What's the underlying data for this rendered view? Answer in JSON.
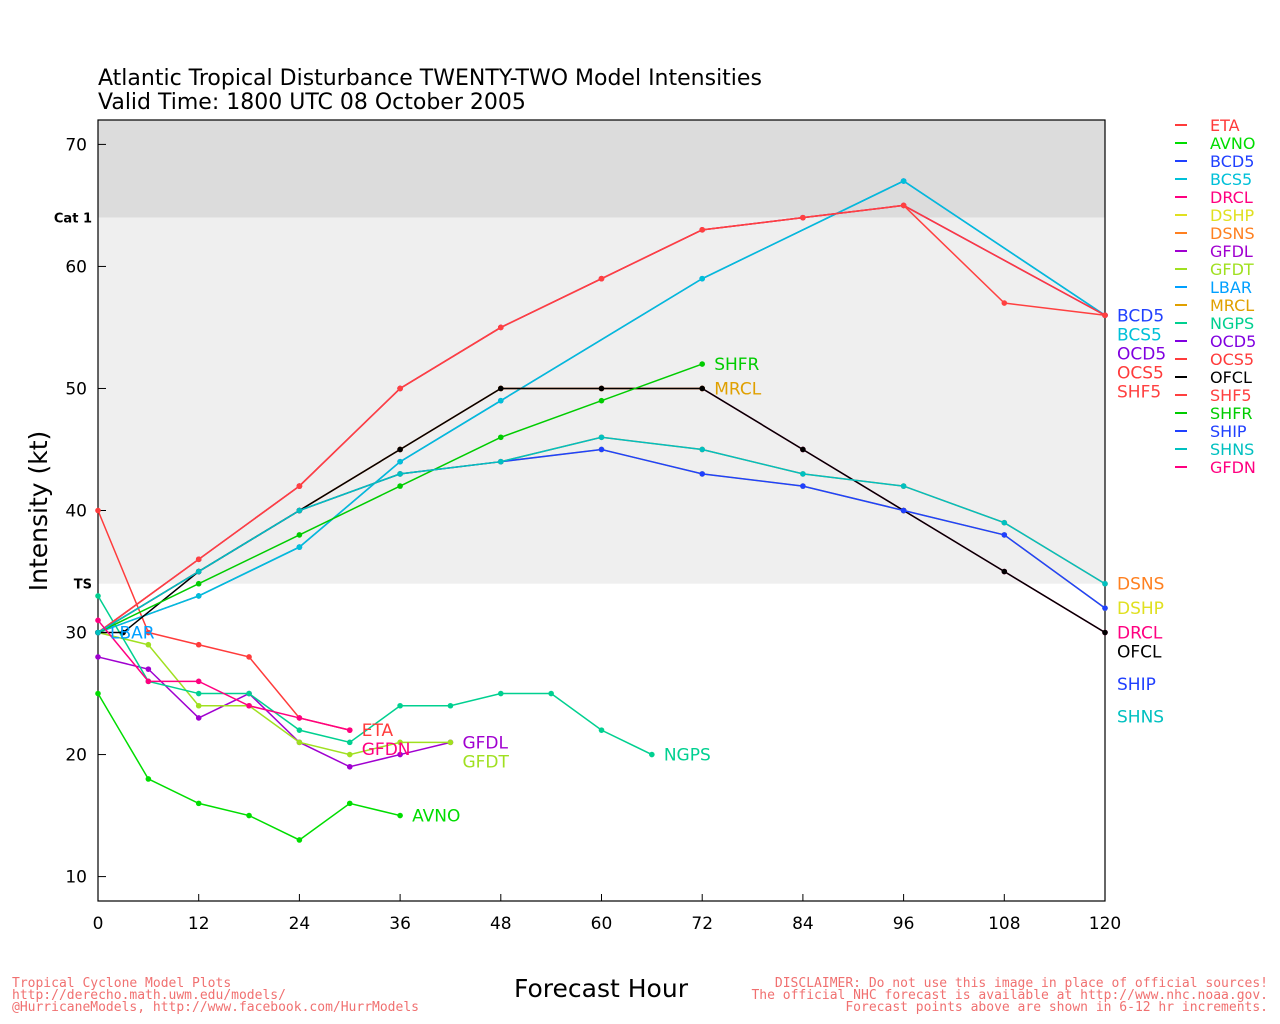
{
  "header": {
    "title": "Atlantic Tropical Disturbance TWENTY-TWO Model Intensities",
    "subtitle": "Valid Time: 1800 UTC 08 October 2005"
  },
  "footer": {
    "left": [
      "Tropical Cyclone Model Plots",
      "http://derecho.math.uwm.edu/models/",
      "@HurricaneModels, http://www.facebook.com/HurrModels"
    ],
    "right": [
      "DISCLAIMER: Do not use this image in place of official sources!",
      "The official NHC forecast is available at http://www.nhc.noaa.gov.",
      "Forecast points above are shown in 6-12 hr increments."
    ]
  },
  "chart_data": {
    "type": "line",
    "title": "Atlantic Tropical Disturbance TWENTY-TWO Model Intensities",
    "xlabel": "Forecast Hour",
    "ylabel": "Intensity (kt)",
    "xlim": [
      0,
      120
    ],
    "ylim": [
      8,
      72
    ],
    "xticks": [
      0,
      12,
      24,
      36,
      48,
      60,
      72,
      84,
      96,
      108,
      120
    ],
    "yticks": [
      10,
      20,
      30,
      40,
      50,
      60,
      70
    ],
    "bands": [
      {
        "label": "Cat 1",
        "from": 64,
        "to": 72,
        "color": "#dcdcdc"
      },
      {
        "label": "TS",
        "from": 34,
        "to": 64,
        "color": "#efefef"
      }
    ],
    "legend_position": "right",
    "series": [
      {
        "name": "ETA",
        "color": "#ff3b3b",
        "x": [
          0,
          6,
          12,
          18,
          24,
          30
        ],
        "y": [
          40,
          30,
          29,
          28,
          23,
          22
        ]
      },
      {
        "name": "AVNO",
        "color": "#00dd00",
        "x": [
          0,
          6,
          12,
          18,
          24,
          30,
          36
        ],
        "y": [
          25,
          18,
          16,
          15,
          13,
          16,
          15
        ]
      },
      {
        "name": "BCD5",
        "color": "#2040ff",
        "x": [
          0,
          12,
          24,
          36,
          48,
          72,
          96,
          120
        ],
        "y": [
          30,
          33,
          37,
          44,
          49,
          59,
          67,
          56
        ]
      },
      {
        "name": "BCS5",
        "color": "#00c0d8",
        "x": [
          0,
          12,
          24,
          36,
          48,
          72,
          96,
          120
        ],
        "y": [
          30,
          33,
          37,
          44,
          49,
          59,
          67,
          56
        ]
      },
      {
        "name": "DRCL",
        "color": "#ff0080",
        "x": [
          0,
          12,
          24,
          36,
          48,
          60,
          72,
          84,
          96,
          108,
          120
        ],
        "y": [
          30,
          35,
          40,
          45,
          50,
          50,
          50,
          45,
          40,
          35,
          30
        ]
      },
      {
        "name": "DSHP",
        "color": "#e0e020",
        "x": [
          0,
          12,
          24,
          36,
          48,
          60,
          72,
          84,
          96,
          108,
          120
        ],
        "y": [
          30,
          35,
          40,
          43,
          44,
          45,
          43,
          42,
          40,
          38,
          32
        ]
      },
      {
        "name": "DSNS",
        "color": "#ff8020",
        "x": [
          0,
          12,
          24,
          36,
          48,
          60,
          72,
          84,
          96,
          108,
          120
        ],
        "y": [
          30,
          35,
          40,
          43,
          44,
          46,
          45,
          43,
          42,
          39,
          34
        ]
      },
      {
        "name": "GFDL",
        "color": "#a000d0",
        "x": [
          0,
          6,
          12,
          18,
          24,
          30,
          36,
          42
        ],
        "y": [
          28,
          27,
          23,
          25,
          21,
          19,
          20,
          21
        ]
      },
      {
        "name": "GFDT",
        "color": "#a0e020",
        "x": [
          0,
          6,
          12,
          18,
          24,
          30,
          36,
          42
        ],
        "y": [
          30,
          29,
          24,
          24,
          21,
          20,
          21,
          21
        ]
      },
      {
        "name": "LBAR",
        "color": "#00a0ff",
        "x": [
          0
        ],
        "y": [
          30
        ]
      },
      {
        "name": "MRCL",
        "color": "#e0a000",
        "x": [
          0,
          12,
          24,
          36,
          48,
          60,
          72
        ],
        "y": [
          30,
          35,
          40,
          45,
          50,
          50,
          50
        ]
      },
      {
        "name": "NGPS",
        "color": "#00d090",
        "x": [
          0,
          6,
          12,
          18,
          24,
          30,
          36,
          42,
          48,
          54,
          60,
          66
        ],
        "y": [
          33,
          26,
          25,
          25,
          22,
          21,
          24,
          24,
          25,
          25,
          22,
          20
        ]
      },
      {
        "name": "OCD5",
        "color": "#8000e0",
        "x": [
          0,
          12,
          24,
          36,
          48,
          60,
          72,
          84,
          96,
          120
        ],
        "y": [
          30,
          36,
          42,
          50,
          55,
          59,
          63,
          64,
          65,
          56
        ]
      },
      {
        "name": "OCS5",
        "color": "#ff3b3b",
        "x": [
          0,
          12,
          24,
          36,
          48,
          60,
          72,
          84,
          96,
          120
        ],
        "y": [
          30,
          36,
          42,
          50,
          55,
          59,
          63,
          64,
          65,
          56
        ]
      },
      {
        "name": "OFCL",
        "color": "#000000",
        "x": [
          0,
          3,
          12,
          24,
          36,
          48,
          60,
          72,
          84,
          96,
          108,
          120
        ],
        "y": [
          30,
          30,
          35,
          40,
          45,
          50,
          50,
          50,
          45,
          40,
          35,
          30
        ]
      },
      {
        "name": "SHF5",
        "color": "#ff4040",
        "x": [
          0,
          12,
          24,
          36,
          48,
          60,
          72,
          84,
          96,
          108,
          120
        ],
        "y": [
          30,
          36,
          42,
          50,
          55,
          59,
          63,
          64,
          65,
          57,
          56
        ]
      },
      {
        "name": "SHFR",
        "color": "#00cc00",
        "x": [
          0,
          12,
          24,
          36,
          48,
          60,
          72
        ],
        "y": [
          30,
          34,
          38,
          42,
          46,
          49,
          52
        ]
      },
      {
        "name": "SHIP",
        "color": "#2040ff",
        "x": [
          0,
          12,
          24,
          36,
          48,
          60,
          72,
          84,
          96,
          108,
          120
        ],
        "y": [
          30,
          35,
          40,
          43,
          44,
          45,
          43,
          42,
          40,
          38,
          32
        ]
      },
      {
        "name": "SHNS",
        "color": "#00c0c0",
        "x": [
          0,
          12,
          24,
          36,
          48,
          60,
          72,
          84,
          96,
          108,
          120
        ],
        "y": [
          30,
          35,
          40,
          43,
          44,
          46,
          45,
          43,
          42,
          39,
          34
        ]
      },
      {
        "name": "GFDN",
        "color": "#ff0080",
        "x": [
          0,
          6,
          12,
          18,
          24,
          30
        ],
        "y": [
          31,
          26,
          26,
          24,
          23,
          22
        ]
      }
    ]
  }
}
